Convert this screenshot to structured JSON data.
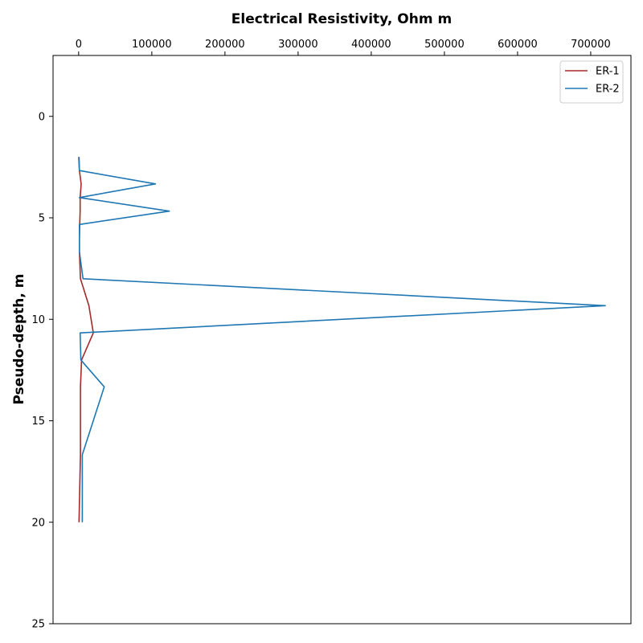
{
  "chart_data": {
    "type": "line",
    "xlabel": "Electrical Resistivity, Ohm m",
    "ylabel": "Pseudo-depth, m",
    "x_axis_position": "top",
    "y_inverted": true,
    "xlim": [
      -35000,
      755000
    ],
    "ylim": [
      -3,
      25
    ],
    "x_ticks": [
      0,
      100000,
      200000,
      300000,
      400000,
      500000,
      600000,
      700000
    ],
    "x_tick_labels": [
      "0",
      "100000",
      "200000",
      "300000",
      "400000",
      "500000",
      "600000",
      "700000"
    ],
    "y_ticks": [
      0,
      5,
      10,
      15,
      20,
      25
    ],
    "y_tick_labels": [
      "0",
      "5",
      "10",
      "15",
      "20",
      "25"
    ],
    "grid": false,
    "legend_position": "top-right",
    "series": [
      {
        "name": "ER-1",
        "color": "#a52a2a",
        "points": [
          {
            "x": 500,
            "y": 2.0
          },
          {
            "x": 1000,
            "y": 2.67
          },
          {
            "x": 3500,
            "y": 3.33
          },
          {
            "x": 2000,
            "y": 4.0
          },
          {
            "x": 2000,
            "y": 4.67
          },
          {
            "x": 1500,
            "y": 5.33
          },
          {
            "x": 1000,
            "y": 6.0
          },
          {
            "x": 1000,
            "y": 6.67
          },
          {
            "x": 2500,
            "y": 8.0
          },
          {
            "x": 14000,
            "y": 9.33
          },
          {
            "x": 20000,
            "y": 10.67
          },
          {
            "x": 4000,
            "y": 12.0
          },
          {
            "x": 2500,
            "y": 13.33
          },
          {
            "x": 2500,
            "y": 16.67
          },
          {
            "x": 500,
            "y": 20.0
          }
        ]
      },
      {
        "name": "ER-2",
        "color": "#1f77b4",
        "points": [
          {
            "x": 0,
            "y": 2.0
          },
          {
            "x": 1000,
            "y": 2.67
          },
          {
            "x": 105000,
            "y": 3.33
          },
          {
            "x": 1000,
            "y": 4.0
          },
          {
            "x": 124000,
            "y": 4.67
          },
          {
            "x": 1000,
            "y": 5.33
          },
          {
            "x": 1000,
            "y": 6.0
          },
          {
            "x": 1000,
            "y": 6.67
          },
          {
            "x": 6000,
            "y": 8.0
          },
          {
            "x": 720000,
            "y": 9.33
          },
          {
            "x": 2000,
            "y": 10.67
          },
          {
            "x": 3000,
            "y": 12.0
          },
          {
            "x": 35000,
            "y": 13.33
          },
          {
            "x": 5000,
            "y": 16.67
          },
          {
            "x": 5000,
            "y": 20.0
          }
        ]
      }
    ]
  }
}
